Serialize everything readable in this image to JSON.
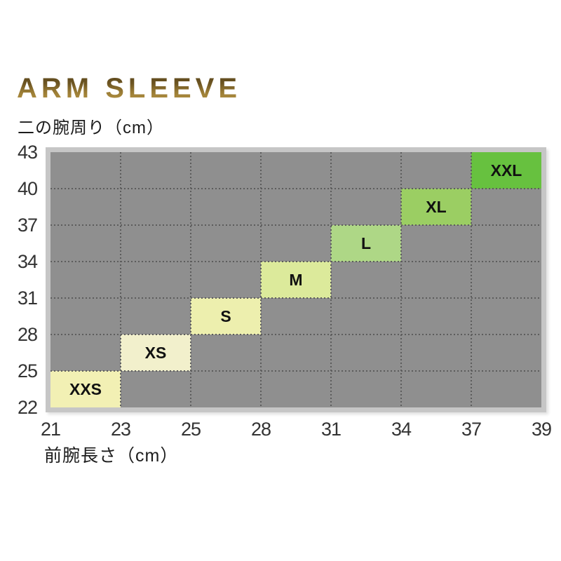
{
  "title": "ARM SLEEVE",
  "y_axis_title": "二の腕周り（cm）",
  "x_axis_title": "前腕長さ（cm）",
  "chart_data": {
    "type": "heatmap",
    "title": "ARM SLEEVE",
    "xlabel": "前腕長さ（cm）",
    "ylabel": "二の腕周り（cm）",
    "x_values": [
      21,
      23,
      25,
      28,
      31,
      34,
      37,
      39
    ],
    "y_values": [
      22,
      25,
      28,
      31,
      34,
      37,
      40,
      43
    ],
    "x_ticks": [
      "21",
      "23",
      "25",
      "28",
      "31",
      "34",
      "37",
      "39"
    ],
    "y_ticks": [
      "43",
      "40",
      "37",
      "34",
      "31",
      "28",
      "25",
      "22"
    ],
    "xlim": [
      21,
      39
    ],
    "ylim": [
      22,
      43
    ],
    "grid": "dotted",
    "legend_position": "none",
    "sizes": [
      {
        "label": "XXS",
        "x_min": 21,
        "x_max": 23,
        "y_min": 22,
        "y_max": 25,
        "color": "#f2f0b4"
      },
      {
        "label": "XS",
        "x_min": 23,
        "x_max": 25,
        "y_min": 25,
        "y_max": 28,
        "color": "#f2f0cc"
      },
      {
        "label": "S",
        "x_min": 25,
        "x_max": 28,
        "y_min": 28,
        "y_max": 31,
        "color": "#edefae"
      },
      {
        "label": "M",
        "x_min": 28,
        "x_max": 31,
        "y_min": 31,
        "y_max": 34,
        "color": "#dcea9b"
      },
      {
        "label": "L",
        "x_min": 31,
        "x_max": 34,
        "y_min": 34,
        "y_max": 37,
        "color": "#aed786"
      },
      {
        "label": "XL",
        "x_min": 34,
        "x_max": 37,
        "y_min": 37,
        "y_max": 40,
        "color": "#9bce63"
      },
      {
        "label": "XXL",
        "x_min": 37,
        "x_max": 39,
        "y_min": 40,
        "y_max": 43,
        "color": "#67c13f"
      }
    ],
    "colors": {
      "plot_background": "#8f8f8f",
      "frame": "#c6c6c6",
      "gridline": "#5c5c5c",
      "title_gold": "#8a6c2a",
      "tick_text": "#333333",
      "box_text": "#111111"
    }
  }
}
